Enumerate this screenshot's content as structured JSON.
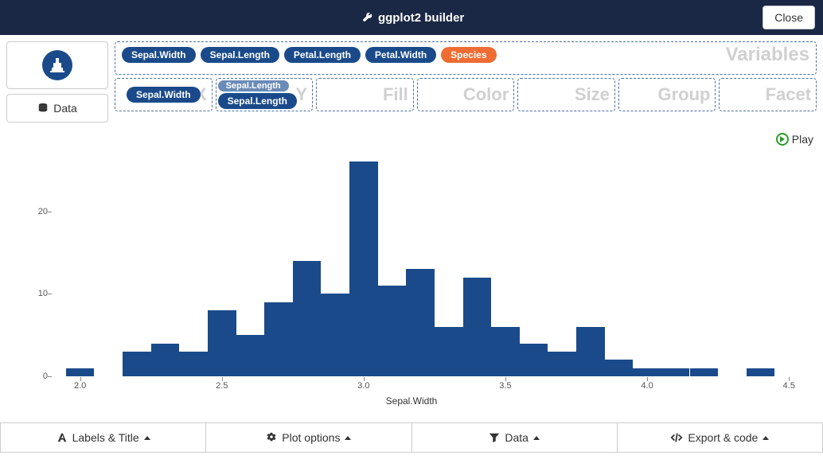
{
  "header": {
    "title": "ggplot2 builder",
    "close": "Close"
  },
  "left": {
    "data_btn": "Data"
  },
  "variables": {
    "box_label": "Variables",
    "pills": [
      {
        "label": "Sepal.Width",
        "cls": "blue"
      },
      {
        "label": "Sepal.Length",
        "cls": "blue"
      },
      {
        "label": "Petal.Length",
        "cls": "blue"
      },
      {
        "label": "Petal.Width",
        "cls": "blue"
      },
      {
        "label": "Species",
        "cls": "orange"
      }
    ]
  },
  "dropzones": [
    {
      "key": "x",
      "label": "X",
      "content_pill": "Sepal.Width",
      "content_cls": "blue"
    },
    {
      "key": "y",
      "label": "Y",
      "ghost_pill": "Sepal.Length",
      "content_pill": "Sepal.Length",
      "content_cls": "blue"
    },
    {
      "key": "fill",
      "label": "Fill"
    },
    {
      "key": "color",
      "label": "Color"
    },
    {
      "key": "size",
      "label": "Size"
    },
    {
      "key": "group",
      "label": "Group"
    },
    {
      "key": "facet",
      "label": "Facet"
    }
  ],
  "play": "Play",
  "chart": {
    "type": "histogram",
    "x_label": "Sepal.Width",
    "x_ticks": [
      2.0,
      2.5,
      3.0,
      3.5,
      4.0,
      4.5
    ],
    "y_ticks": [
      0,
      10,
      20
    ],
    "x_min": 1.9,
    "x_max": 4.55,
    "y_min": 0,
    "y_max": 27,
    "bar_color": "#1a4a8a",
    "bin_width": 0.1,
    "bars": [
      {
        "x": 2.0,
        "count": 1
      },
      {
        "x": 2.2,
        "count": 3
      },
      {
        "x": 2.3,
        "count": 4
      },
      {
        "x": 2.4,
        "count": 3
      },
      {
        "x": 2.5,
        "count": 8
      },
      {
        "x": 2.6,
        "count": 5
      },
      {
        "x": 2.7,
        "count": 9
      },
      {
        "x": 2.8,
        "count": 14
      },
      {
        "x": 2.9,
        "count": 10
      },
      {
        "x": 3.0,
        "count": 26
      },
      {
        "x": 3.1,
        "count": 11
      },
      {
        "x": 3.2,
        "count": 13
      },
      {
        "x": 3.3,
        "count": 6
      },
      {
        "x": 3.4,
        "count": 12
      },
      {
        "x": 3.5,
        "count": 6
      },
      {
        "x": 3.6,
        "count": 4
      },
      {
        "x": 3.7,
        "count": 3
      },
      {
        "x": 3.8,
        "count": 6
      },
      {
        "x": 3.9,
        "count": 2
      },
      {
        "x": 4.0,
        "count": 1
      },
      {
        "x": 4.1,
        "count": 1
      },
      {
        "x": 4.2,
        "count": 1
      },
      {
        "x": 4.4,
        "count": 1
      }
    ]
  },
  "tabs": [
    {
      "label": "Labels & Title",
      "icon": "font"
    },
    {
      "label": "Plot options",
      "icon": "gears"
    },
    {
      "label": "Data",
      "icon": "filter"
    },
    {
      "label": "Export & code",
      "icon": "code"
    }
  ]
}
